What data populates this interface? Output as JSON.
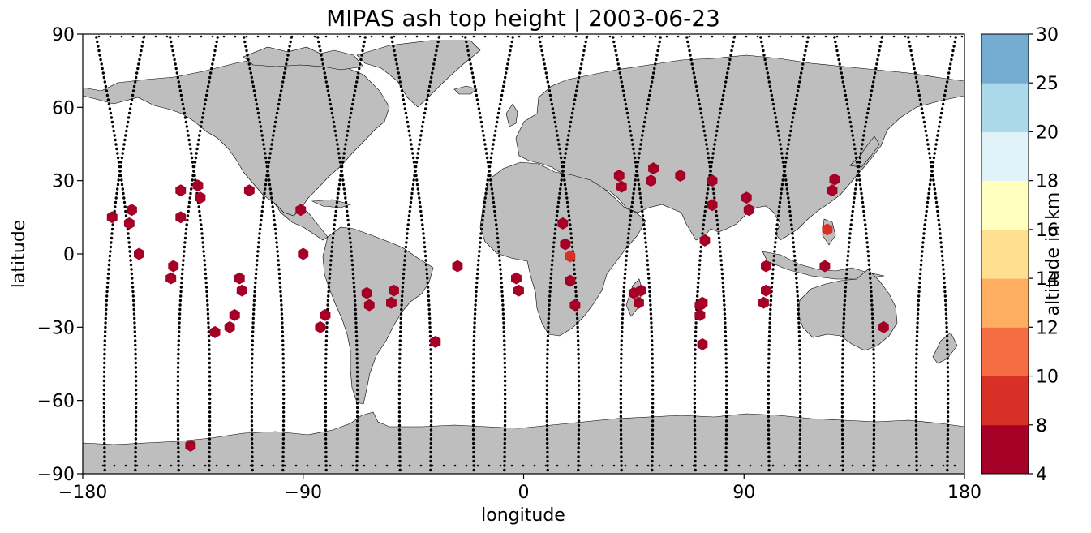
{
  "chart_data": {
    "type": "scatter",
    "title": "MIPAS ash top height | 2003-06-23",
    "xlabel": "longitude",
    "ylabel": "latitude",
    "xlim": [
      -180,
      180
    ],
    "ylim": [
      -90,
      90
    ],
    "xticks": [
      -180,
      -90,
      0,
      90,
      180
    ],
    "yticks": [
      -90,
      -60,
      -30,
      0,
      30,
      60,
      90
    ],
    "xtick_labels": [
      "−180",
      "−90",
      "0",
      "90",
      "180"
    ],
    "ytick_labels": [
      "−90",
      "−60",
      "−30",
      "0",
      "30",
      "60",
      "90"
    ],
    "basemap": "world coastlines, land filled grey",
    "land_color": "#bebebe",
    "colorbar": {
      "label": "altitude in km",
      "levels": [
        4,
        8,
        10,
        12,
        14,
        16,
        18,
        20,
        25,
        30
      ],
      "tick_labels": [
        "4",
        "8",
        "10",
        "12",
        "14",
        "16",
        "18",
        "20",
        "25",
        "30"
      ],
      "colors": [
        "#a50026",
        "#d73027",
        "#f46d43",
        "#fdae61",
        "#fee090",
        "#ffffbf",
        "#e0f3f8",
        "#abd9e9",
        "#74add1",
        "#4575b4",
        "#313695"
      ]
    },
    "series": [
      {
        "marker": "hexagon",
        "points": [
          {
            "lon": -168,
            "lat": 15,
            "alt": 6
          },
          {
            "lon": -161,
            "lat": 12.5,
            "alt": 6
          },
          {
            "lon": -160,
            "lat": 18,
            "alt": 6
          },
          {
            "lon": -157,
            "lat": 0,
            "alt": 6
          },
          {
            "lon": -143,
            "lat": -5,
            "alt": 6
          },
          {
            "lon": -144,
            "lat": -10,
            "alt": 6
          },
          {
            "lon": -140,
            "lat": 26,
            "alt": 6
          },
          {
            "lon": -140,
            "lat": 15,
            "alt": 6
          },
          {
            "lon": -133,
            "lat": 28,
            "alt": 6
          },
          {
            "lon": -132,
            "lat": 23,
            "alt": 6
          },
          {
            "lon": -126,
            "lat": -32,
            "alt": 6
          },
          {
            "lon": -120,
            "lat": -30,
            "alt": 6
          },
          {
            "lon": -118,
            "lat": -25,
            "alt": 6
          },
          {
            "lon": -116,
            "lat": -10,
            "alt": 6
          },
          {
            "lon": -115,
            "lat": -15,
            "alt": 6
          },
          {
            "lon": -112,
            "lat": 26,
            "alt": 6
          },
          {
            "lon": -91,
            "lat": 18,
            "alt": 6
          },
          {
            "lon": -90,
            "lat": 0,
            "alt": 6
          },
          {
            "lon": -81,
            "lat": -25,
            "alt": 6
          },
          {
            "lon": -83,
            "lat": -30,
            "alt": 6
          },
          {
            "lon": -64,
            "lat": -16,
            "alt": 6
          },
          {
            "lon": -63,
            "lat": -21,
            "alt": 6
          },
          {
            "lon": -53,
            "lat": -15,
            "alt": 6
          },
          {
            "lon": -54,
            "lat": -20,
            "alt": 6
          },
          {
            "lon": -36,
            "lat": -36,
            "alt": 6
          },
          {
            "lon": -27,
            "lat": -5,
            "alt": 6
          },
          {
            "lon": -3,
            "lat": -10,
            "alt": 6
          },
          {
            "lon": -2,
            "lat": -15,
            "alt": 6
          },
          {
            "lon": -136,
            "lat": -78.5,
            "alt": 6
          },
          {
            "lon": 16,
            "lat": 12.5,
            "alt": 6
          },
          {
            "lon": 17,
            "lat": 4,
            "alt": 6
          },
          {
            "lon": 19,
            "lat": -1,
            "alt": 9
          },
          {
            "lon": 19,
            "lat": -11,
            "alt": 6
          },
          {
            "lon": 21,
            "lat": -21,
            "alt": 6
          },
          {
            "lon": 39,
            "lat": 32,
            "alt": 6
          },
          {
            "lon": 40,
            "lat": 27.5,
            "alt": 6
          },
          {
            "lon": 45,
            "lat": -16,
            "alt": 6
          },
          {
            "lon": 47,
            "lat": -20,
            "alt": 6
          },
          {
            "lon": 48,
            "lat": -15,
            "alt": 6
          },
          {
            "lon": 52,
            "lat": 30,
            "alt": 6
          },
          {
            "lon": 53,
            "lat": 35,
            "alt": 6
          },
          {
            "lon": 64,
            "lat": 32,
            "alt": 6
          },
          {
            "lon": 72,
            "lat": -21,
            "alt": 6
          },
          {
            "lon": 72,
            "lat": -25,
            "alt": 6
          },
          {
            "lon": 73,
            "lat": -20,
            "alt": 6
          },
          {
            "lon": 73,
            "lat": -37,
            "alt": 6
          },
          {
            "lon": 74,
            "lat": 5.5,
            "alt": 6
          },
          {
            "lon": 77,
            "lat": 30,
            "alt": 6
          },
          {
            "lon": 77,
            "lat": 20,
            "alt": 6
          },
          {
            "lon": 91,
            "lat": 23,
            "alt": 6
          },
          {
            "lon": 92,
            "lat": 18,
            "alt": 6
          },
          {
            "lon": 98,
            "lat": -20,
            "alt": 6
          },
          {
            "lon": 99,
            "lat": -15,
            "alt": 6
          },
          {
            "lon": 99,
            "lat": -5,
            "alt": 6
          },
          {
            "lon": 124,
            "lat": 10,
            "alt": 9
          },
          {
            "lon": 123,
            "lat": -5,
            "alt": 6
          },
          {
            "lon": 126,
            "lat": 26,
            "alt": 6
          },
          {
            "lon": 127,
            "lat": 30.5,
            "alt": 6
          },
          {
            "lon": 147,
            "lat": -30,
            "alt": 6
          }
        ]
      }
    ]
  }
}
